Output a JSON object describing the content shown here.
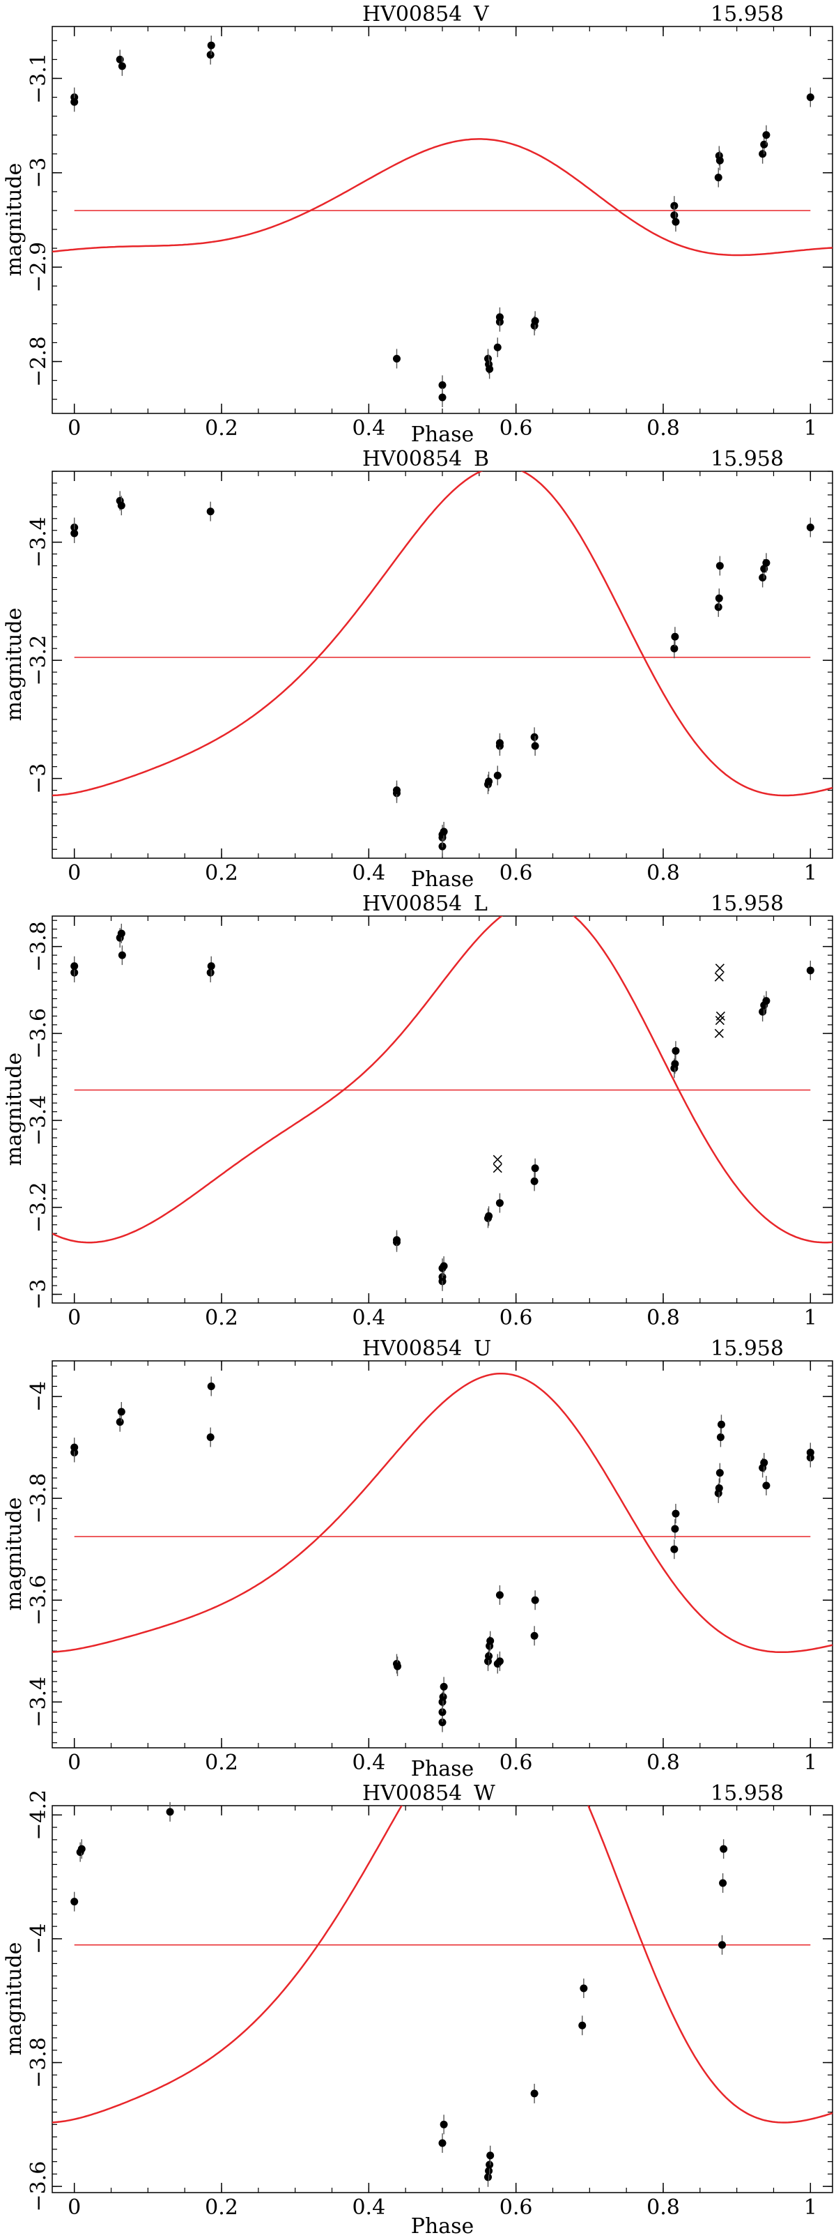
{
  "chart_data": [
    {
      "type": "scatter",
      "star": "HV00854",
      "band": "V",
      "period": "15.958",
      "xlabel": "Phase",
      "ylabel": "magnitude",
      "xlim": [
        -0.03,
        1.03
      ],
      "ylim": [
        -2.745,
        -3.155
      ],
      "xticks": [
        0,
        0.2,
        0.4,
        0.6,
        0.8,
        1
      ],
      "yticks": [
        -3.1,
        -3,
        -2.9,
        -2.8
      ],
      "mean_line": -2.96,
      "fit": {
        "mean": -2.96,
        "harmonics": [
          [
            0.058,
            0.16
          ],
          [
            0.0186,
            1.92
          ],
          [
            0.0021,
            2.95
          ]
        ]
      },
      "points": [
        {
          "x": 0.0,
          "y": -3.08
        },
        {
          "x": 0.0,
          "y": -3.075
        },
        {
          "x": 0.062,
          "y": -3.12
        },
        {
          "x": 0.065,
          "y": -3.113
        },
        {
          "x": 0.185,
          "y": -3.125
        },
        {
          "x": 0.186,
          "y": -3.135
        },
        {
          "x": 0.438,
          "y": -2.803
        },
        {
          "x": 0.5,
          "y": -2.775
        },
        {
          "x": 0.5,
          "y": -2.762
        },
        {
          "x": 0.562,
          "y": -2.803
        },
        {
          "x": 0.563,
          "y": -2.797
        },
        {
          "x": 0.564,
          "y": -2.792
        },
        {
          "x": 0.575,
          "y": -2.815
        },
        {
          "x": 0.578,
          "y": -2.842
        },
        {
          "x": 0.578,
          "y": -2.847
        },
        {
          "x": 0.625,
          "y": -2.838
        },
        {
          "x": 0.626,
          "y": -2.843
        },
        {
          "x": 0.815,
          "y": -2.965
        },
        {
          "x": 0.815,
          "y": -2.955
        },
        {
          "x": 0.817,
          "y": -2.948
        },
        {
          "x": 0.875,
          "y": -2.995
        },
        {
          "x": 0.876,
          "y": -3.018
        },
        {
          "x": 0.877,
          "y": -3.013
        },
        {
          "x": 0.935,
          "y": -3.02
        },
        {
          "x": 0.937,
          "y": -3.03
        },
        {
          "x": 0.94,
          "y": -3.04
        },
        {
          "x": 1.0,
          "y": -3.08
        }
      ],
      "crosses": []
    },
    {
      "type": "scatter",
      "star": "HV00854",
      "band": "B",
      "period": "15.958",
      "xlabel": "Phase",
      "ylabel": "magnitude",
      "xlim": [
        -0.03,
        1.03
      ],
      "ylim": [
        -2.865,
        -3.52
      ],
      "xticks": [
        0,
        0.2,
        0.4,
        0.6,
        0.8,
        1
      ],
      "yticks": [
        -3.4,
        -3.2,
        -3
      ],
      "mean_line": -3.205,
      "fit": {
        "mean": -3.205,
        "harmonics": [
          [
            0.265,
            0.3
          ],
          [
            0.064,
            2.22
          ],
          [
            0.007,
            3.0
          ]
        ]
      },
      "points": [
        {
          "x": 0.0,
          "y": -3.425
        },
        {
          "x": 0.0,
          "y": -3.415
        },
        {
          "x": 0.062,
          "y": -3.47
        },
        {
          "x": 0.064,
          "y": -3.462
        },
        {
          "x": 0.185,
          "y": -3.452
        },
        {
          "x": 0.438,
          "y": -2.975
        },
        {
          "x": 0.438,
          "y": -2.98
        },
        {
          "x": 0.5,
          "y": -2.885
        },
        {
          "x": 0.5,
          "y": -2.9
        },
        {
          "x": 0.5,
          "y": -2.905
        },
        {
          "x": 0.502,
          "y": -2.91
        },
        {
          "x": 0.562,
          "y": -2.99
        },
        {
          "x": 0.563,
          "y": -2.995
        },
        {
          "x": 0.575,
          "y": -3.005
        },
        {
          "x": 0.578,
          "y": -3.055
        },
        {
          "x": 0.578,
          "y": -3.06
        },
        {
          "x": 0.625,
          "y": -3.07
        },
        {
          "x": 0.626,
          "y": -3.055
        },
        {
          "x": 0.815,
          "y": -3.22
        },
        {
          "x": 0.816,
          "y": -3.24
        },
        {
          "x": 0.875,
          "y": -3.29
        },
        {
          "x": 0.876,
          "y": -3.305
        },
        {
          "x": 0.877,
          "y": -3.36
        },
        {
          "x": 0.935,
          "y": -3.34
        },
        {
          "x": 0.937,
          "y": -3.355
        },
        {
          "x": 0.94,
          "y": -3.365
        },
        {
          "x": 1.0,
          "y": -3.425
        }
      ],
      "crosses": []
    },
    {
      "type": "scatter",
      "star": "HV00854",
      "band": "L",
      "period": "15.958",
      "xlabel": "",
      "ylabel": "magnitude",
      "xlim": [
        -0.03,
        1.03
      ],
      "ylim": [
        -2.98,
        -3.87
      ],
      "xticks": [
        0,
        0.2,
        0.4,
        0.6,
        0.8,
        1
      ],
      "yticks": [
        -3.8,
        -3.6,
        -3.4,
        -3.2,
        -3
      ],
      "mean_line": -3.47,
      "fit": {
        "mean": -3.47,
        "harmonics": [
          [
            0.36,
            0.55
          ],
          [
            0.09,
            2.65
          ],
          [
            0.01,
            3.0
          ]
        ]
      },
      "points": [
        {
          "x": 0.0,
          "y": -3.74
        },
        {
          "x": 0.0,
          "y": -3.755
        },
        {
          "x": 0.062,
          "y": -3.82
        },
        {
          "x": 0.064,
          "y": -3.83
        },
        {
          "x": 0.065,
          "y": -3.78
        },
        {
          "x": 0.185,
          "y": -3.74
        },
        {
          "x": 0.186,
          "y": -3.755
        },
        {
          "x": 0.438,
          "y": -3.12
        },
        {
          "x": 0.438,
          "y": -3.125
        },
        {
          "x": 0.5,
          "y": -3.03
        },
        {
          "x": 0.5,
          "y": -3.04
        },
        {
          "x": 0.5,
          "y": -3.06
        },
        {
          "x": 0.502,
          "y": -3.065
        },
        {
          "x": 0.562,
          "y": -3.175
        },
        {
          "x": 0.563,
          "y": -3.18
        },
        {
          "x": 0.578,
          "y": -3.21
        },
        {
          "x": 0.625,
          "y": -3.26
        },
        {
          "x": 0.626,
          "y": -3.29
        },
        {
          "x": 0.815,
          "y": -3.52
        },
        {
          "x": 0.816,
          "y": -3.53
        },
        {
          "x": 0.817,
          "y": -3.56
        },
        {
          "x": 0.935,
          "y": -3.65
        },
        {
          "x": 0.937,
          "y": -3.665
        },
        {
          "x": 0.94,
          "y": -3.675
        },
        {
          "x": 1.0,
          "y": -3.745
        }
      ],
      "crosses": [
        {
          "x": 0.575,
          "y": -3.29
        },
        {
          "x": 0.575,
          "y": -3.31
        },
        {
          "x": 0.876,
          "y": -3.6
        },
        {
          "x": 0.877,
          "y": -3.63
        },
        {
          "x": 0.878,
          "y": -3.64
        },
        {
          "x": 0.876,
          "y": -3.73
        },
        {
          "x": 0.877,
          "y": -3.75
        }
      ]
    },
    {
      "type": "scatter",
      "star": "HV00854",
      "band": "U",
      "period": "15.958",
      "xlabel": "Phase",
      "ylabel": "magnitude",
      "xlim": [
        -0.03,
        1.03
      ],
      "ylim": [
        -3.31,
        -4.07
      ],
      "xticks": [
        0,
        0.2,
        0.4,
        0.6,
        0.8,
        1
      ],
      "yticks": [
        -4,
        -3.8,
        -3.6,
        -3.4
      ],
      "mean_line": -3.725,
      "fit": {
        "mean": -3.725,
        "harmonics": [
          [
            0.26,
            0.3
          ],
          [
            0.065,
            2.2
          ],
          [
            0.007,
            3.0
          ]
        ]
      },
      "points": [
        {
          "x": 0.0,
          "y": -3.89
        },
        {
          "x": 0.0,
          "y": -3.9
        },
        {
          "x": 0.062,
          "y": -3.95
        },
        {
          "x": 0.064,
          "y": -3.97
        },
        {
          "x": 0.185,
          "y": -3.92
        },
        {
          "x": 0.186,
          "y": -4.02
        },
        {
          "x": 0.438,
          "y": -3.475
        },
        {
          "x": 0.439,
          "y": -3.47
        },
        {
          "x": 0.5,
          "y": -3.36
        },
        {
          "x": 0.5,
          "y": -3.38
        },
        {
          "x": 0.5,
          "y": -3.4
        },
        {
          "x": 0.501,
          "y": -3.41
        },
        {
          "x": 0.502,
          "y": -3.43
        },
        {
          "x": 0.562,
          "y": -3.48
        },
        {
          "x": 0.563,
          "y": -3.49
        },
        {
          "x": 0.564,
          "y": -3.51
        },
        {
          "x": 0.565,
          "y": -3.52
        },
        {
          "x": 0.575,
          "y": -3.475
        },
        {
          "x": 0.578,
          "y": -3.48
        },
        {
          "x": 0.578,
          "y": -3.61
        },
        {
          "x": 0.625,
          "y": -3.53
        },
        {
          "x": 0.626,
          "y": -3.6
        },
        {
          "x": 0.815,
          "y": -3.7
        },
        {
          "x": 0.816,
          "y": -3.74
        },
        {
          "x": 0.817,
          "y": -3.77
        },
        {
          "x": 0.875,
          "y": -3.81
        },
        {
          "x": 0.876,
          "y": -3.82
        },
        {
          "x": 0.877,
          "y": -3.85
        },
        {
          "x": 0.878,
          "y": -3.92
        },
        {
          "x": 0.879,
          "y": -3.945
        },
        {
          "x": 0.935,
          "y": -3.86
        },
        {
          "x": 0.937,
          "y": -3.87
        },
        {
          "x": 0.94,
          "y": -3.825
        },
        {
          "x": 1.0,
          "y": -3.88
        },
        {
          "x": 1.0,
          "y": -3.89
        }
      ],
      "crosses": []
    },
    {
      "type": "scatter",
      "star": "HV00854",
      "band": "W",
      "period": "15.958",
      "xlabel": "Phase",
      "ylabel": "magnitude",
      "xlim": [
        -0.03,
        1.03
      ],
      "ylim": [
        -3.59,
        -4.215
      ],
      "xticks": [
        0,
        0.2,
        0.4,
        0.6,
        0.8,
        1
      ],
      "yticks": [
        -4.2,
        -4,
        -3.8,
        -3.6
      ],
      "mean_line": -3.99,
      "fit": {
        "mean": -3.99,
        "harmonics": [
          [
            0.33,
            0.3
          ],
          [
            0.08,
            2.2
          ],
          [
            0.01,
            3.0
          ]
        ]
      },
      "points": [
        {
          "x": 0.0,
          "y": -4.06
        },
        {
          "x": 0.008,
          "y": -4.14
        },
        {
          "x": 0.01,
          "y": -4.145
        },
        {
          "x": 0.13,
          "y": -4.205
        },
        {
          "x": 0.5,
          "y": -3.67
        },
        {
          "x": 0.502,
          "y": -3.7
        },
        {
          "x": 0.562,
          "y": -3.615
        },
        {
          "x": 0.563,
          "y": -3.625
        },
        {
          "x": 0.564,
          "y": -3.635
        },
        {
          "x": 0.565,
          "y": -3.65
        },
        {
          "x": 0.625,
          "y": -3.75
        },
        {
          "x": 0.69,
          "y": -3.86
        },
        {
          "x": 0.692,
          "y": -3.92
        },
        {
          "x": 0.88,
          "y": -3.99
        },
        {
          "x": 0.881,
          "y": -4.09
        },
        {
          "x": 0.882,
          "y": -4.145
        }
      ],
      "crosses": []
    }
  ]
}
